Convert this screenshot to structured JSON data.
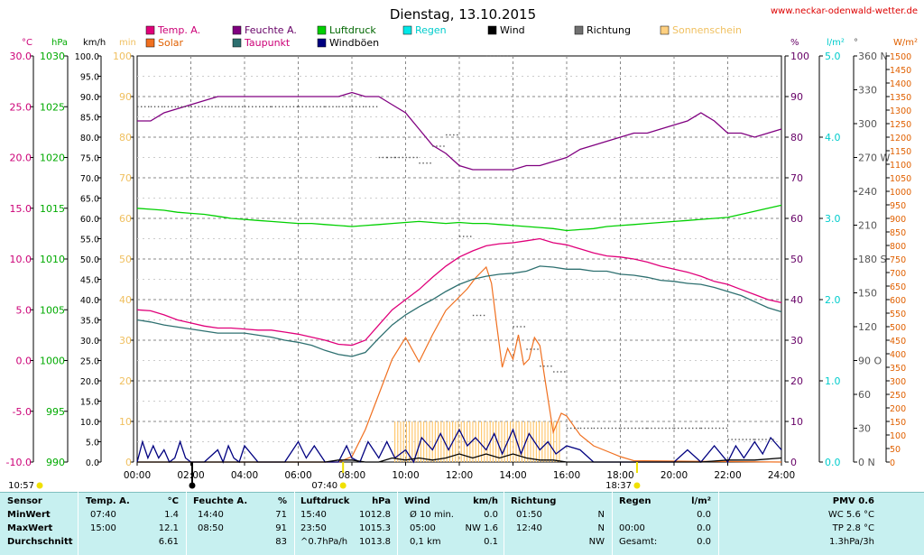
{
  "site": "www.neckar-odenwald-wetter.de",
  "chart_data": {
    "type": "line",
    "title": "Dienstag, 13.10.2015",
    "x_ticks": [
      "00:00",
      "02:00",
      "04:00",
      "06:00",
      "08:00",
      "10:00",
      "12:00",
      "14:00",
      "16:00",
      "18:00",
      "20:00",
      "22:00",
      "24:00"
    ],
    "axes": {
      "temp_c": {
        "unit": "°C",
        "ticks": [
          "30.0",
          "25.0",
          "20.0",
          "15.0",
          "10.0",
          "5.0",
          "0.0",
          "-5.0",
          "-10.0"
        ],
        "range": [
          -10,
          30
        ],
        "color": "#cc0077"
      },
      "pressure_hpa": {
        "unit": "hPa",
        "ticks": [
          "1030",
          "1025",
          "1020",
          "1015",
          "1010",
          "1005",
          "1000",
          "995",
          "990"
        ],
        "range": [
          990,
          1030
        ],
        "color": "#00aa00"
      },
      "wind_kmh": {
        "unit": "km/h",
        "ticks": [
          "100.0",
          "95.0",
          "90.0",
          "85.0",
          "80.0",
          "75.0",
          "70.0",
          "65.0",
          "60.0",
          "55.0",
          "50.0",
          "45.0",
          "40.0",
          "35.0",
          "30.0",
          "25.0",
          "20.0",
          "15.0",
          "10.0",
          "5.0",
          "0.0"
        ],
        "range": [
          0,
          100
        ],
        "color": "#000000"
      },
      "sunshine_min": {
        "unit": "min",
        "ticks": [
          "100",
          "90",
          "80",
          "70",
          "60",
          "50",
          "40",
          "30",
          "20",
          "10",
          "0"
        ],
        "range": [
          0,
          100
        ],
        "color": "#f0c060"
      },
      "humidity_pct": {
        "unit": "%",
        "ticks": [
          "100",
          "90",
          "80",
          "70",
          "60",
          "50",
          "40",
          "30",
          "20",
          "10",
          "0"
        ],
        "range": [
          0,
          100
        ],
        "color": "#660066"
      },
      "rain_lm2": {
        "unit": "l/m²",
        "ticks": [
          "5.0",
          "4.0",
          "3.0",
          "2.0",
          "1.0",
          "0.0"
        ],
        "range": [
          0,
          5
        ],
        "color": "#00cccc"
      },
      "direction_deg": {
        "unit": "°",
        "ticks": [
          "360 N",
          "330",
          "300",
          "270 W",
          "240",
          "210",
          "180 S",
          "150",
          "120",
          "90 O",
          "60",
          "30",
          "0 N"
        ],
        "range": [
          0,
          360
        ],
        "color": "#555555"
      },
      "solar_wm2": {
        "unit": "W/m²",
        "ticks": [
          "1500",
          "1450",
          "1400",
          "1350",
          "1300",
          "1250",
          "1200",
          "1150",
          "1100",
          "1050",
          "1000",
          "950",
          "900",
          "850",
          "800",
          "750",
          "700",
          "650",
          "600",
          "550",
          "500",
          "450",
          "400",
          "350",
          "300",
          "250",
          "200",
          "150",
          "100",
          "50",
          "0"
        ],
        "range": [
          0,
          1500
        ],
        "color": "#e06000"
      }
    },
    "legend": [
      {
        "name": "Temp. A.",
        "color": "#e0007a"
      },
      {
        "name": "Feuchte A.",
        "color": "#800080"
      },
      {
        "name": "Luftdruck",
        "color": "#00d000"
      },
      {
        "name": "Regen",
        "color": "#00e8e8"
      },
      {
        "name": "Wind",
        "color": "#000000"
      },
      {
        "name": "Richtung",
        "color": "#707070"
      },
      {
        "name": "Sonnenschein",
        "color": "#ffd080"
      },
      {
        "name": "Solar",
        "color": "#f07020"
      },
      {
        "name": "Taupunkt",
        "color": "#2e7070"
      },
      {
        "name": "Windböen",
        "color": "#000080"
      }
    ],
    "series": {
      "temp_c": {
        "x": [
          0,
          0.5,
          1,
          1.5,
          2,
          2.5,
          3,
          3.5,
          4,
          4.5,
          5,
          5.5,
          6,
          6.5,
          7,
          7.5,
          8,
          8.5,
          9,
          9.5,
          10,
          10.5,
          11,
          11.5,
          12,
          12.5,
          13,
          13.5,
          14,
          14.5,
          15,
          15.5,
          16,
          16.5,
          17,
          17.5,
          18,
          18.5,
          19,
          19.5,
          20,
          20.5,
          21,
          21.5,
          22,
          22.5,
          23,
          23.5,
          24
        ],
        "y": [
          5.0,
          4.9,
          4.5,
          4.0,
          3.7,
          3.4,
          3.2,
          3.2,
          3.1,
          3.0,
          3.0,
          2.8,
          2.6,
          2.3,
          2.0,
          1.6,
          1.5,
          2.0,
          3.5,
          5.0,
          6.0,
          7.0,
          8.2,
          9.3,
          10.2,
          10.8,
          11.3,
          11.5,
          11.6,
          11.8,
          12.0,
          11.6,
          11.4,
          11.0,
          10.6,
          10.3,
          10.2,
          10.0,
          9.7,
          9.3,
          9.0,
          8.7,
          8.3,
          7.8,
          7.5,
          7.0,
          6.5,
          6.0,
          5.7
        ]
      },
      "dewpoint_c": {
        "x": [
          0,
          0.5,
          1,
          1.5,
          2,
          2.5,
          3,
          3.5,
          4,
          4.5,
          5,
          5.5,
          6,
          6.5,
          7,
          7.5,
          8,
          8.5,
          9,
          9.5,
          10,
          10.5,
          11,
          11.5,
          12,
          12.5,
          13,
          13.5,
          14,
          14.5,
          15,
          15.5,
          16,
          16.5,
          17,
          17.5,
          18,
          18.5,
          19,
          19.5,
          20,
          20.5,
          21,
          21.5,
          22,
          22.5,
          23,
          23.5,
          24
        ],
        "y": [
          4.0,
          3.8,
          3.5,
          3.3,
          3.1,
          2.9,
          2.7,
          2.7,
          2.7,
          2.5,
          2.3,
          2.0,
          1.8,
          1.5,
          1.0,
          0.6,
          0.4,
          0.8,
          2.2,
          3.5,
          4.5,
          5.3,
          6.0,
          6.8,
          7.5,
          8.0,
          8.3,
          8.5,
          8.6,
          8.8,
          9.3,
          9.2,
          9.0,
          9.0,
          8.8,
          8.8,
          8.5,
          8.4,
          8.2,
          7.9,
          7.8,
          7.6,
          7.5,
          7.2,
          6.8,
          6.4,
          5.8,
          5.2,
          4.8
        ]
      },
      "humidity_pct": {
        "x": [
          0,
          0.5,
          1,
          1.5,
          2,
          2.5,
          3,
          3.5,
          4,
          4.5,
          5,
          5.5,
          6,
          6.5,
          7,
          7.5,
          8,
          8.5,
          9,
          9.5,
          10,
          10.5,
          11,
          11.5,
          12,
          12.5,
          13,
          13.5,
          14,
          14.5,
          15,
          15.5,
          16,
          16.5,
          17,
          17.5,
          18,
          18.5,
          19,
          19.5,
          20,
          20.5,
          21,
          21.5,
          22,
          22.5,
          23,
          23.5,
          24
        ],
        "y": [
          84,
          84,
          86,
          87,
          88,
          89,
          90,
          90,
          90,
          90,
          90,
          90,
          90,
          90,
          90,
          90,
          91,
          90,
          90,
          88,
          86,
          82,
          78,
          76,
          73,
          72,
          72,
          72,
          72,
          73,
          73,
          74,
          75,
          77,
          78,
          79,
          80,
          81,
          81,
          82,
          83,
          84,
          86,
          84,
          81,
          81,
          80,
          81,
          82
        ]
      },
      "pressure_hpa": {
        "x": [
          0,
          0.5,
          1,
          1.5,
          2,
          2.5,
          3,
          3.5,
          4,
          4.5,
          5,
          5.5,
          6,
          6.5,
          7,
          7.5,
          8,
          8.5,
          9,
          9.5,
          10,
          10.5,
          11,
          11.5,
          12,
          12.5,
          13,
          13.5,
          14,
          14.5,
          15,
          15.5,
          16,
          16.5,
          17,
          17.5,
          18,
          18.5,
          19,
          19.5,
          20,
          20.5,
          21,
          21.5,
          22,
          22.5,
          23,
          23.5,
          24
        ],
        "y": [
          1015.0,
          1014.9,
          1014.8,
          1014.6,
          1014.5,
          1014.4,
          1014.2,
          1014.0,
          1013.9,
          1013.8,
          1013.7,
          1013.6,
          1013.5,
          1013.5,
          1013.4,
          1013.3,
          1013.2,
          1013.3,
          1013.4,
          1013.5,
          1013.6,
          1013.7,
          1013.6,
          1013.5,
          1013.6,
          1013.5,
          1013.5,
          1013.4,
          1013.3,
          1013.2,
          1013.1,
          1013.0,
          1012.8,
          1012.9,
          1013.0,
          1013.2,
          1013.3,
          1013.4,
          1013.5,
          1013.6,
          1013.7,
          1013.8,
          1013.9,
          1014.0,
          1014.1,
          1014.4,
          1014.7,
          1015.0,
          1015.3
        ]
      },
      "solar_wm2": {
        "x": [
          0,
          7.5,
          8,
          8.5,
          9,
          9.5,
          10,
          10.5,
          11,
          11.5,
          12,
          12.3,
          12.6,
          13,
          13.2,
          13.4,
          13.6,
          13.8,
          14,
          14.2,
          14.4,
          14.6,
          14.8,
          15,
          15.2,
          15.5,
          15.8,
          16,
          16.5,
          17,
          17.5,
          18,
          18.5,
          24
        ],
        "y": [
          0,
          0,
          20,
          120,
          250,
          380,
          460,
          370,
          470,
          560,
          610,
          640,
          680,
          720,
          660,
          500,
          350,
          420,
          380,
          470,
          360,
          380,
          460,
          430,
          300,
          110,
          180,
          170,
          100,
          60,
          40,
          20,
          5,
          0
        ]
      },
      "sunshine_min": {
        "start": 9.6,
        "end": 15.8,
        "value": 10
      },
      "wind_kmh": {
        "x": [
          0,
          0.5,
          1,
          1.5,
          2,
          3,
          4,
          5,
          6,
          7,
          7.5,
          8,
          8.5,
          9,
          9.5,
          10,
          10.5,
          11,
          11.5,
          12,
          12.5,
          13,
          13.5,
          14,
          14.5,
          15,
          15.5,
          16,
          16.5,
          17,
          18,
          19,
          20,
          21,
          22,
          23,
          24
        ],
        "y": [
          0,
          0,
          0,
          0,
          0,
          0,
          0,
          0,
          0,
          0,
          0.5,
          0.5,
          0,
          0,
          1,
          0.5,
          1,
          0.5,
          1,
          2,
          1,
          2,
          1,
          2,
          1,
          0.5,
          0.5,
          0,
          0,
          0,
          0,
          0,
          0,
          0,
          0.5,
          0.5,
          1
        ]
      },
      "gusts_kmh": {
        "x": [
          0,
          0.2,
          0.4,
          0.6,
          0.8,
          1,
          1.2,
          1.4,
          1.6,
          1.8,
          2,
          2.5,
          3,
          3.2,
          3.4,
          3.6,
          3.8,
          4,
          4.5,
          5,
          5.5,
          6,
          6.3,
          6.6,
          7,
          7.5,
          7.8,
          8,
          8.3,
          8.6,
          9,
          9.3,
          9.6,
          10,
          10.3,
          10.6,
          11,
          11.3,
          11.6,
          12,
          12.3,
          12.6,
          13,
          13.3,
          13.6,
          14,
          14.3,
          14.6,
          15,
          15.3,
          15.6,
          16,
          16.5,
          17,
          18,
          19,
          20,
          20.5,
          21,
          21.5,
          22,
          22.3,
          22.6,
          23,
          23.3,
          23.6,
          24
        ],
        "y": [
          0,
          5,
          1,
          4,
          1,
          3,
          0,
          1,
          5,
          1,
          0,
          0,
          3,
          0,
          4,
          1,
          0,
          4,
          0,
          0,
          0,
          5,
          1,
          4,
          0,
          0,
          4,
          1,
          0,
          5,
          1,
          5,
          1,
          3,
          0,
          6,
          3,
          7,
          3,
          8,
          4,
          6,
          3,
          7,
          2,
          8,
          2,
          7,
          3,
          5,
          2,
          4,
          3,
          0,
          0,
          0,
          0,
          3,
          0,
          4,
          0,
          4,
          1,
          5,
          2,
          6,
          3
        ]
      },
      "direction_deg": {
        "x": [
          0,
          0.5,
          1,
          1.5,
          2,
          2.5,
          3,
          3.5,
          4,
          5,
          6,
          7,
          7.5,
          8,
          8.5,
          9,
          9.3,
          9.6,
          10,
          10.5,
          11,
          11.5,
          12,
          12.5,
          13,
          13.5,
          14,
          14.5,
          15,
          15.5,
          16,
          16.5,
          17,
          18,
          19,
          20,
          21,
          22,
          23,
          23.7
        ],
        "y": [
          315,
          315,
          315,
          315,
          315,
          315,
          315,
          315,
          315,
          315,
          315,
          315,
          315,
          315,
          315,
          270,
          270,
          270,
          270,
          265,
          280,
          290,
          200,
          130,
          360,
          360,
          120,
          100,
          85,
          80,
          30,
          30,
          30,
          30,
          30,
          30,
          30,
          20,
          20,
          0
        ]
      },
      "rain_lm2": {
        "x": [
          0,
          24
        ],
        "y": [
          0,
          0
        ]
      }
    }
  },
  "markers": {
    "min_temp_time": "10:57",
    "sunrise": "07:40",
    "sunset": "18:37"
  },
  "table": {
    "headers": {
      "sensor": "Sensor",
      "temp": "Temp. A.",
      "temp_unit": "°C",
      "hum": "Feuchte A.",
      "hum_unit": "%",
      "press": "Luftdruck",
      "press_unit": "hPa",
      "wind": "Wind",
      "wind_unit": "km/h",
      "dir": "Richtung",
      "rain": "Regen",
      "rain_unit": "l/m²",
      "pmv": "PMV 0.6"
    },
    "rows": [
      {
        "label": "MinWert",
        "temp_time": "07:40",
        "temp_val": "1.4",
        "hum_time": "14:40",
        "hum_val": "71",
        "press_time": "15:40",
        "press_val": "1012.8",
        "wind_time": "Ø 10 min.",
        "wind_val": "0.0",
        "dir_time": "01:50",
        "dir_val": "N",
        "rain_time": "",
        "rain_val": "0.0",
        "pmv": "WC 5.6 °C"
      },
      {
        "label": "MaxWert",
        "temp_time": "15:00",
        "temp_val": "12.1",
        "hum_time": "08:50",
        "hum_val": "91",
        "press_time": "23:50",
        "press_val": "1015.3",
        "wind_time": "05:00",
        "wind_val": "NW 1.6",
        "dir_time": "12:40",
        "dir_val": "N",
        "rain_time": "00:00",
        "rain_val": "0.0",
        "pmv": "TP 2.8 °C"
      },
      {
        "label": "Durchschnitt",
        "temp_time": "",
        "temp_val": "6.61",
        "hum_time": "",
        "hum_val": "83",
        "press_time": "^0.7hPa/h",
        "press_val": "1013.8",
        "wind_time": "0,1 km",
        "wind_val": "0.1",
        "dir_time": "",
        "dir_val": "NW",
        "rain_time": "Gesamt:",
        "rain_val": "0.0",
        "pmv": "1.3hPa/3h"
      }
    ]
  }
}
